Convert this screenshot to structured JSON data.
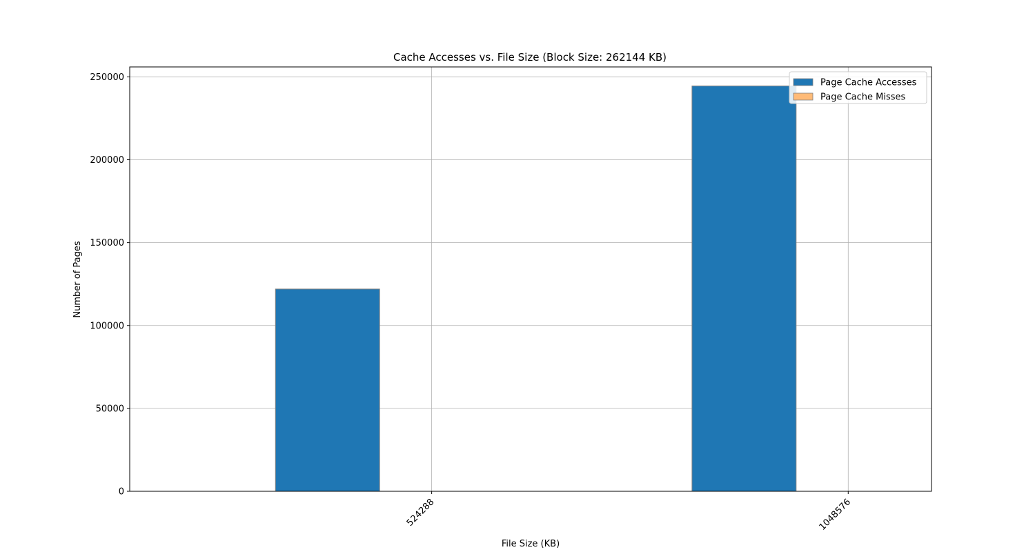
{
  "chart_data": {
    "type": "bar",
    "title": "Cache Accesses vs. File Size (Block Size: 262144 KB)",
    "xlabel": "File Size (KB)",
    "ylabel": "Number of Pages",
    "categories": [
      "524288",
      "1048576"
    ],
    "series": [
      {
        "name": "Page Cache Accesses",
        "values": [
          122000,
          244500
        ],
        "color": "#1f77b4"
      },
      {
        "name": "Page Cache Misses",
        "values": [
          0,
          0
        ],
        "color": "#ffbb78"
      }
    ],
    "ylim": [
      0,
      256000
    ],
    "yticks": [
      "0",
      "50000",
      "100000",
      "150000",
      "200000",
      "250000"
    ],
    "grid": true,
    "legend_position": "top-right",
    "bar_edge_color": "#808080"
  }
}
